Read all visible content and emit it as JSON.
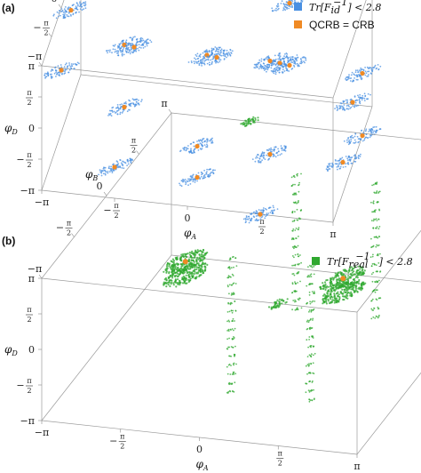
{
  "chart_data": [
    {
      "panel": "(a)",
      "type": "scatter",
      "legend": [
        {
          "label": "Tr[F_id^-1] < 2.8",
          "text_main": "Tr",
          "text_bracket": "[F",
          "text_sub": "id",
          "text_sup": "−1",
          "text_close": "] < 2.8",
          "color": "#4a90e2"
        },
        {
          "label": "QCRB = CRB",
          "color": "#f08a24"
        }
      ],
      "axes": {
        "x": {
          "label": "φA",
          "letter": "φ",
          "sub": "A",
          "ticks": [
            "−π",
            "−π/2",
            "0",
            "π/2",
            "π"
          ]
        },
        "y": {
          "label": "φB",
          "letter": "φ",
          "sub": "B",
          "ticks": [
            "−π",
            "−π/2",
            "0",
            "π/2",
            "π"
          ]
        },
        "z": {
          "label": "φD",
          "letter": "φ",
          "sub": "D",
          "ticks": [
            "−π",
            "−π/2",
            "0",
            "π/2",
            "π"
          ]
        },
        "range": [
          -3.14159,
          3.14159
        ]
      },
      "clusters": [
        {
          "x": -1.5708,
          "y": -1.5708,
          "z": 3.14159
        },
        {
          "x": 1.5708,
          "y": -1.5708,
          "z": 3.14159
        },
        {
          "x": -1.5708,
          "y": 1.5708,
          "z": 3.14159
        },
        {
          "x": 1.5708,
          "y": 1.5708,
          "z": 3.14159
        },
        {
          "x": -3.14159,
          "y": 0,
          "z": 0
        },
        {
          "x": -1.5708,
          "y": 0,
          "z": 1.5708
        },
        {
          "x": 0,
          "y": 0,
          "z": 1.5708
        },
        {
          "x": 1.5708,
          "y": 0,
          "z": 1.5708
        },
        {
          "x": 0,
          "y": 1.5708,
          "z": 0
        },
        {
          "x": 1.5708,
          "y": 1.5708,
          "z": 0
        },
        {
          "x": 3.14159,
          "y": 1.5708,
          "z": 0
        },
        {
          "x": 3.14159,
          "y": 0,
          "z": 0
        },
        {
          "x": -1.5708,
          "y": -3.14159,
          "z": -1.5708
        },
        {
          "x": 0,
          "y": -1.5708,
          "z": -1.5708
        },
        {
          "x": 1.5708,
          "y": -1.5708,
          "z": -1.5708
        },
        {
          "x": 3.14159,
          "y": -1.5708,
          "z": -1.5708
        },
        {
          "x": -1.5708,
          "y": -1.5708,
          "z": 0
        },
        {
          "x": 3.14159,
          "y": 1.5708,
          "z": -3.14159
        },
        {
          "x": 0,
          "y": -1.5708,
          "z": -3.14159
        },
        {
          "x": 1.5708,
          "y": -3.14159,
          "z": -3.14159
        },
        {
          "x": -3.14159,
          "y": 1.5708,
          "z": 1.5708
        }
      ]
    },
    {
      "panel": "(b)",
      "type": "scatter",
      "legend": [
        {
          "label": "Tr[F_real^-1] < 2.8",
          "text_main": "Tr",
          "text_bracket": "[F",
          "text_sub": "real",
          "text_sup": "−1",
          "text_close": "] < 2.8",
          "color": "#2fa82f"
        }
      ],
      "axes": {
        "x": {
          "label": "φA",
          "letter": "φ",
          "sub": "A",
          "ticks": [
            "−π",
            "−π/2",
            "0",
            "π/2",
            "π"
          ]
        },
        "y": {
          "label": "φB",
          "letter": "φ",
          "sub": "B",
          "ticks": [
            "−π",
            "−π/2",
            "0",
            "π/2",
            "π"
          ]
        },
        "z": {
          "label": "φD",
          "letter": "φ",
          "sub": "D",
          "ticks": [
            "−π",
            "−π/2",
            "0",
            "π/2",
            "π"
          ]
        },
        "range": [
          -3.14159,
          3.14159
        ]
      },
      "blobs": [
        {
          "x": -1.5708,
          "y": 0,
          "z": 0.6,
          "orange": true
        },
        {
          "x": -1.5708,
          "y": 0,
          "z": 0.0,
          "orange": false
        },
        {
          "x": 1.5708,
          "y": 0,
          "z": 0.6,
          "orange": true
        },
        {
          "x": 1.5708,
          "y": 0,
          "z": 0.0,
          "orange": false
        },
        {
          "x": -1.5708,
          "y": 3.14159,
          "z": 3.14159,
          "orange": false
        },
        {
          "x": 1.5708,
          "y": -3.14159,
          "z": 3.14159,
          "orange": false
        }
      ],
      "columns": [
        {
          "x": 0,
          "y": 1.5708
        },
        {
          "x": 0,
          "y": -1.5708
        },
        {
          "x": 1.5708,
          "y": 1.5708
        },
        {
          "x": 1.5708,
          "y": -1.5708
        }
      ]
    }
  ]
}
